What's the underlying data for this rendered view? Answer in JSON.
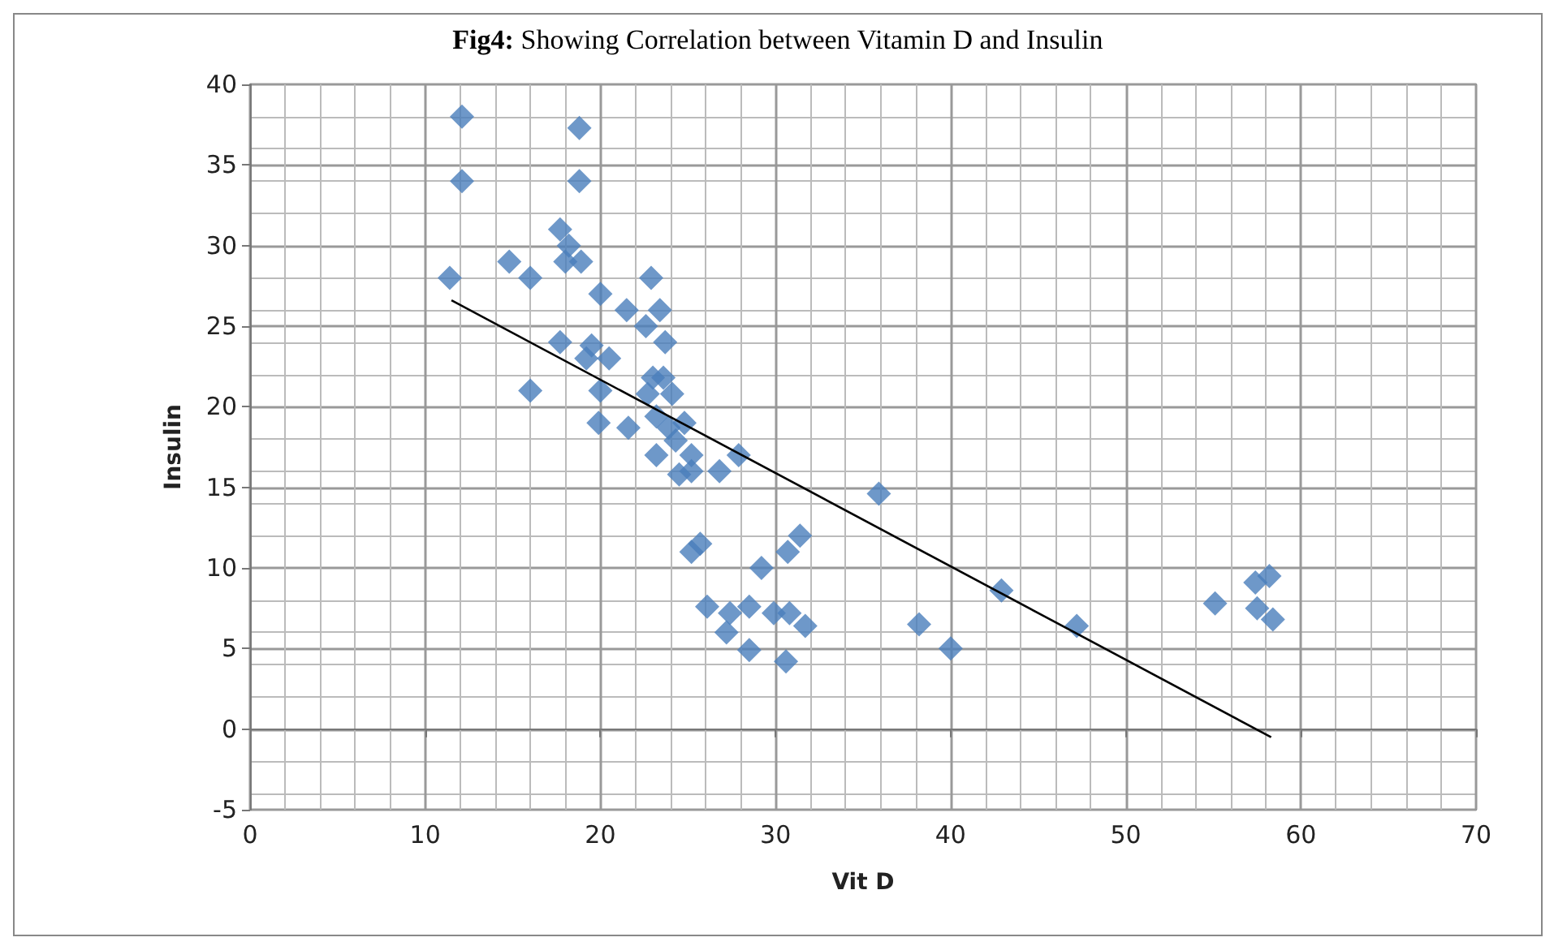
{
  "chart_data": {
    "type": "scatter",
    "title": "Fig4: Showing Correlation between Vitamin D and Insulin",
    "xlabel": "Vit D",
    "ylabel": "Insulin",
    "marker": "diamond",
    "grid": true,
    "xlim": [
      0,
      70
    ],
    "xticks": [
      0,
      10,
      20,
      30,
      40,
      50,
      60,
      70
    ],
    "ylim": [
      -5,
      40
    ],
    "yticks": [
      -5,
      0,
      5,
      10,
      15,
      20,
      25,
      30,
      35,
      40
    ],
    "series": [
      {
        "color": "#4a7ebb",
        "x": [
          12.1,
          12.1,
          18.8,
          18.8,
          11.4,
          14.8,
          16,
          17.7,
          18.2,
          18,
          18.9,
          20,
          17.7,
          16,
          21.5,
          22.6,
          22.9,
          23.4,
          23.7,
          19.5,
          20.5,
          19.2,
          20,
          19.9,
          21.6,
          23,
          22.7,
          23.6,
          24.1,
          23.2,
          23.9,
          24.3,
          23.2,
          24.8,
          25.2,
          24.5,
          25.2,
          26.8,
          27.9,
          35.9,
          25.2,
          25.7,
          29.2,
          30.7,
          31.4,
          26.1,
          27.4,
          27.2,
          28.5,
          28.5,
          29.9,
          30.8,
          31.7,
          30.6,
          38.2,
          40,
          42.9,
          47.2,
          55.1,
          57.4,
          58.2,
          57.5,
          58.4
        ],
        "values": [
          38,
          34,
          37.3,
          34,
          28,
          29,
          28,
          31,
          30,
          29,
          29,
          27,
          24,
          21,
          26,
          25,
          28,
          26,
          24,
          23.8,
          23,
          23,
          21,
          19,
          18.7,
          21.8,
          20.8,
          21.8,
          20.8,
          19.4,
          18.7,
          17.9,
          17,
          19,
          17,
          15.8,
          16,
          16,
          17,
          14.6,
          11,
          11.5,
          10,
          11,
          12,
          7.6,
          7.2,
          6,
          4.9,
          7.6,
          7.2,
          7.2,
          6.4,
          4.2,
          6.5,
          5,
          8.6,
          6.4,
          7.8,
          9.1,
          9.5,
          7.5,
          6.8
        ]
      },
      {
        "type": "line",
        "color": "#000000",
        "marker": "none",
        "x": [
          11.5,
          58.3
        ],
        "values": [
          26.6,
          -0.5
        ]
      }
    ]
  }
}
